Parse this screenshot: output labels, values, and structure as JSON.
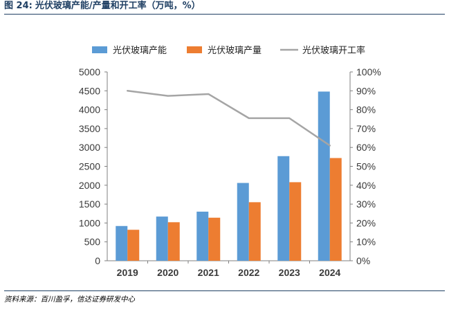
{
  "header": {
    "figure_number": "图 24:",
    "title": "光伏玻璃产能/产量和开工率（万吨，%）"
  },
  "footer": {
    "source": "资料来源：百川盈孚，信达证券研发中心"
  },
  "colors": {
    "capacity": "#5b9bd5",
    "output": "#ed7d31",
    "utilization": "#a5a5a5",
    "title": "#1f3f63"
  },
  "chart_data": {
    "type": "bar",
    "title": "光伏玻璃产能/产量和开工率（万吨，%）",
    "categories": [
      "2019",
      "2020",
      "2021",
      "2022",
      "2023",
      "2024"
    ],
    "series": [
      {
        "name": "光伏玻璃产能",
        "kind": "bar",
        "axis": "left",
        "values": [
          920,
          1170,
          1300,
          2060,
          2770,
          4480
        ]
      },
      {
        "name": "光伏玻璃产量",
        "kind": "bar",
        "axis": "left",
        "values": [
          820,
          1020,
          1140,
          1550,
          2080,
          2720
        ]
      },
      {
        "name": "光伏玻璃开工率",
        "kind": "line",
        "axis": "right",
        "values": [
          90,
          87.3,
          88.3,
          75.5,
          75.5,
          61
        ]
      }
    ],
    "ylim": [
      0,
      5000
    ],
    "yticks": [
      "0",
      "500",
      "1000",
      "1500",
      "2000",
      "2500",
      "3000",
      "3500",
      "4000",
      "4500",
      "5000"
    ],
    "ylim_right": [
      0,
      100
    ],
    "yticks_right": [
      "0%",
      "10%",
      "20%",
      "30%",
      "40%",
      "50%",
      "60%",
      "70%",
      "80%",
      "90%",
      "100%"
    ],
    "xlabel": "",
    "ylabel": "",
    "ylabel_right": "",
    "legend": "top",
    "grid": false
  }
}
